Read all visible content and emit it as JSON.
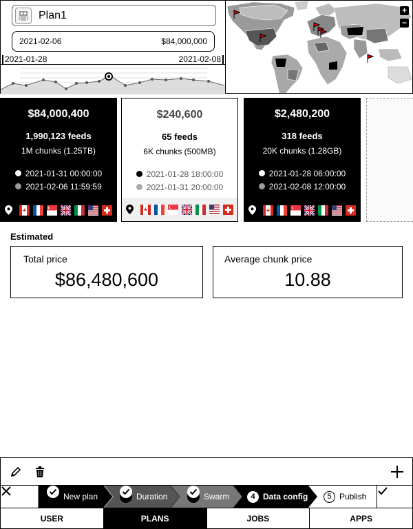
{
  "plan": {
    "name": "Plan1",
    "range_start": "2021-02-06",
    "range_price": "$84,000,000",
    "axis_start": "2021-01-28",
    "axis_end": "2021-02-08"
  },
  "map": {
    "zoom_in": "+",
    "zoom_out": "−"
  },
  "cards": [
    {
      "price": "$84,000,400",
      "feeds_count": "1,990,123",
      "feeds_label": "feeds",
      "chunks": "1M chunks (1.25TB)",
      "time_start": "2021-01-31 00:00:00",
      "time_end": "2021-02-06 11:59:59",
      "style": "dark"
    },
    {
      "price": "$240,600",
      "feeds_count": "65",
      "feeds_label": "feeds",
      "chunks": "6K chunks (500MB)",
      "time_start": "2021-01-28 18:00:00",
      "time_end": "2021-01-31 20:00:00",
      "style": "light"
    },
    {
      "price": "$2,480,200",
      "feeds_count": "318",
      "feeds_label": "feeds",
      "chunks": "20K chunks (1.28GB)",
      "time_start": "2021-01-28 06:00:00",
      "time_end": "2021-02-08 12:00:00",
      "style": "dark"
    }
  ],
  "flags": [
    "canada-flag-icon",
    "france-flag-icon",
    "singapore-flag-icon",
    "uk-flag-icon",
    "italy-flag-icon",
    "usa-flag-icon",
    "switzerland-flag-icon"
  ],
  "estimated": {
    "title": "Estimated",
    "total_label": "Total price",
    "total_value": "$86,480,600",
    "avg_label": "Average chunk price",
    "avg_value": "10.88"
  },
  "wizard": {
    "steps": [
      {
        "label": "New plan",
        "state": "done"
      },
      {
        "label": "Duration",
        "state": "done"
      },
      {
        "label": "Swarm",
        "state": "done"
      },
      {
        "label": "Data config",
        "number": "4",
        "state": "active"
      },
      {
        "label": "Publish",
        "number": "5",
        "state": "pending"
      }
    ]
  },
  "tabs": [
    {
      "label": "USER",
      "active": false
    },
    {
      "label": "PLANS",
      "active": true
    },
    {
      "label": "JOBS",
      "active": false
    },
    {
      "label": "APPS",
      "active": false
    }
  ],
  "colors": {
    "primary": "#000000",
    "muted": "#999999",
    "light_bg": "#f0f0f0"
  }
}
